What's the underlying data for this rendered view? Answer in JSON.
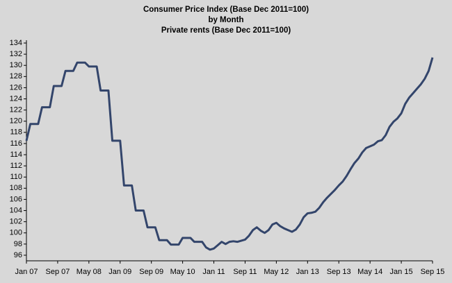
{
  "chart_data": {
    "type": "line",
    "title": [
      "Consumer Price Index (Base Dec 2011=100)",
      "by Month",
      "Private rents (Base Dec 2011=100)"
    ],
    "categories": [
      "Jan 07",
      null,
      null,
      null,
      null,
      null,
      null,
      null,
      "Sep 07",
      null,
      null,
      null,
      null,
      null,
      null,
      null,
      "May 08",
      null,
      null,
      null,
      null,
      null,
      null,
      null,
      "Jan 09",
      null,
      null,
      null,
      null,
      null,
      null,
      null,
      "Sep 09",
      null,
      null,
      null,
      null,
      null,
      null,
      null,
      "May 10",
      null,
      null,
      null,
      null,
      null,
      null,
      null,
      "Jan 11",
      null,
      null,
      null,
      null,
      null,
      null,
      null,
      "Sep 11",
      null,
      null,
      null,
      null,
      null,
      null,
      null,
      "May 12",
      null,
      null,
      null,
      null,
      null,
      null,
      null,
      "Jan 13",
      null,
      null,
      null,
      null,
      null,
      null,
      null,
      "Sep 13",
      null,
      null,
      null,
      null,
      null,
      null,
      null,
      "May 14",
      null,
      null,
      null,
      null,
      null,
      null,
      null,
      "Jan 15",
      null,
      null,
      null,
      null,
      null,
      null,
      null,
      "Sep 15"
    ],
    "values": [
      116.5,
      119.5,
      119.5,
      119.5,
      122.5,
      122.5,
      122.5,
      126.3,
      126.3,
      126.3,
      129,
      129,
      129,
      130.5,
      130.5,
      130.5,
      129.8,
      129.8,
      129.8,
      125.5,
      125.5,
      125.5,
      116.5,
      116.5,
      116.5,
      108.5,
      108.5,
      108.5,
      104,
      104,
      104,
      101,
      101,
      101,
      98.7,
      98.7,
      98.7,
      97.9,
      97.9,
      97.9,
      99.1,
      99.1,
      99.1,
      98.4,
      98.4,
      98.4,
      97.4,
      97,
      97.2,
      97.8,
      98.4,
      98,
      98.4,
      98.5,
      98.4,
      98.6,
      98.8,
      99.5,
      100.5,
      101,
      100.4,
      100,
      100.5,
      101.5,
      101.8,
      101.2,
      100.8,
      100.5,
      100.2,
      100.6,
      101.5,
      102.8,
      103.5,
      103.6,
      103.8,
      104.5,
      105.5,
      106.3,
      107,
      107.7,
      108.5,
      109.2,
      110.2,
      111.4,
      112.5,
      113.3,
      114.4,
      115.2,
      115.5,
      115.8,
      116.4,
      116.6,
      117.5,
      119,
      119.9,
      120.5,
      121.4,
      123.1,
      124.2,
      125,
      125.8,
      126.6,
      127.6,
      129,
      131.4
    ],
    "color": "#33456b",
    "ylim": [
      95,
      134.5
    ],
    "yticks": [
      96,
      98,
      100,
      102,
      104,
      106,
      108,
      110,
      112,
      114,
      116,
      118,
      120,
      122,
      124,
      126,
      128,
      130,
      132,
      134
    ],
    "grid": false
  }
}
